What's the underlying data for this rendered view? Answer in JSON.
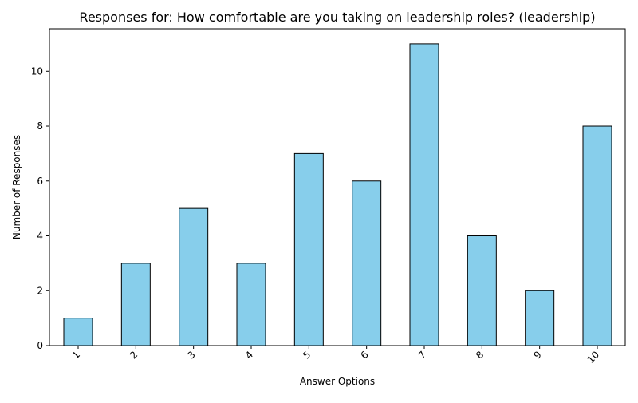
{
  "chart_data": {
    "type": "bar",
    "title": "Responses for: How comfortable are you taking on leadership roles? (leadership)",
    "xlabel": "Answer Options",
    "ylabel": "Number of Responses",
    "categories": [
      "1",
      "2",
      "3",
      "4",
      "5",
      "6",
      "7",
      "8",
      "9",
      "10"
    ],
    "values": [
      1,
      3,
      5,
      3,
      7,
      6,
      11,
      4,
      2,
      8
    ],
    "ylim": [
      0,
      11.55
    ],
    "yticks": [
      0,
      2,
      4,
      6,
      8,
      10
    ],
    "grid": false,
    "legend": "none",
    "bar_color": "#87ceeb",
    "bar_edge_color": "#000000"
  }
}
